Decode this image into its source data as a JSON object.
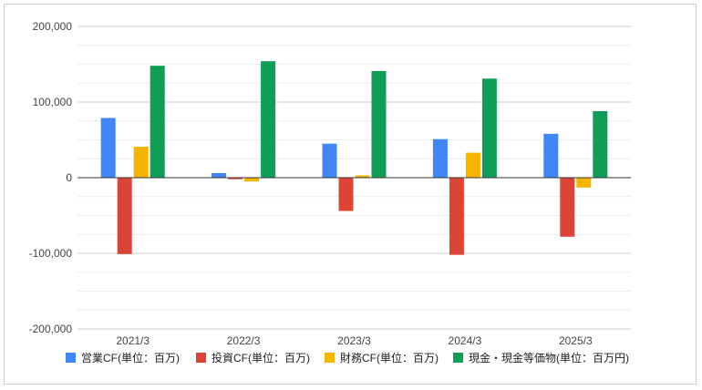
{
  "chart_data": {
    "type": "bar",
    "categories": [
      "2021/3",
      "2022/3",
      "2023/3",
      "2024/3",
      "2025/3"
    ],
    "series": [
      {
        "name": "営業CF(単位：百万)",
        "color": "#4285f4",
        "values": [
          79000,
          6000,
          45000,
          51000,
          58000
        ]
      },
      {
        "name": "投資CF(単位：百万)",
        "color": "#db4437",
        "values": [
          -101000,
          -2000,
          -44000,
          -102000,
          -78000
        ]
      },
      {
        "name": "財務CF(単位：百万)",
        "color": "#f4b400",
        "values": [
          41000,
          -5000,
          3000,
          33000,
          -13000
        ]
      },
      {
        "name": "現金・現金等価物(単位：百万円)",
        "color": "#0f9d58",
        "values": [
          148000,
          154000,
          141000,
          131000,
          88000
        ]
      }
    ],
    "y_ticks": [
      "200,000",
      "100,000",
      "0",
      "-100,000",
      "-200,000"
    ],
    "ylim": [
      -200000,
      200000
    ],
    "grid": true,
    "legend_position": "bottom"
  }
}
